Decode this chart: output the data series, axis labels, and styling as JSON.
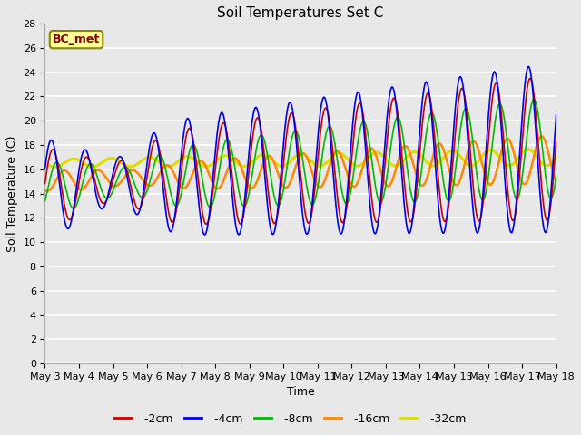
{
  "title": "Soil Temperatures Set C",
  "xlabel": "Time",
  "ylabel": "Soil Temperature (C)",
  "ylim": [
    0,
    28
  ],
  "yticks": [
    0,
    2,
    4,
    6,
    8,
    10,
    12,
    14,
    16,
    18,
    20,
    22,
    24,
    26,
    28
  ],
  "x_labels": [
    "May 3",
    "May 4",
    "May 5",
    "May 6",
    "May 7",
    "May 8",
    "May 9",
    "May 10",
    "May 11",
    "May 12",
    "May 13",
    "May 14",
    "May 15",
    "May 16",
    "May 17",
    "May 18"
  ],
  "series": {
    "-2cm": {
      "color": "#cc0000",
      "lw": 1.2
    },
    "-4cm": {
      "color": "#0000ee",
      "lw": 1.2
    },
    "-8cm": {
      "color": "#00bb00",
      "lw": 1.2
    },
    "-16cm": {
      "color": "#ff8800",
      "lw": 1.8
    },
    "-32cm": {
      "color": "#dddd00",
      "lw": 2.2
    }
  },
  "legend_label": "BC_met",
  "legend_text_color": "#880000",
  "legend_bg": "#ffff99",
  "legend_border": "#888800",
  "bg_color": "#e8e8e8",
  "plot_bg": "#e8e8e8",
  "grid_color": "#ffffff",
  "title_fontsize": 11,
  "axis_fontsize": 9,
  "tick_fontsize": 8,
  "n_points": 720
}
